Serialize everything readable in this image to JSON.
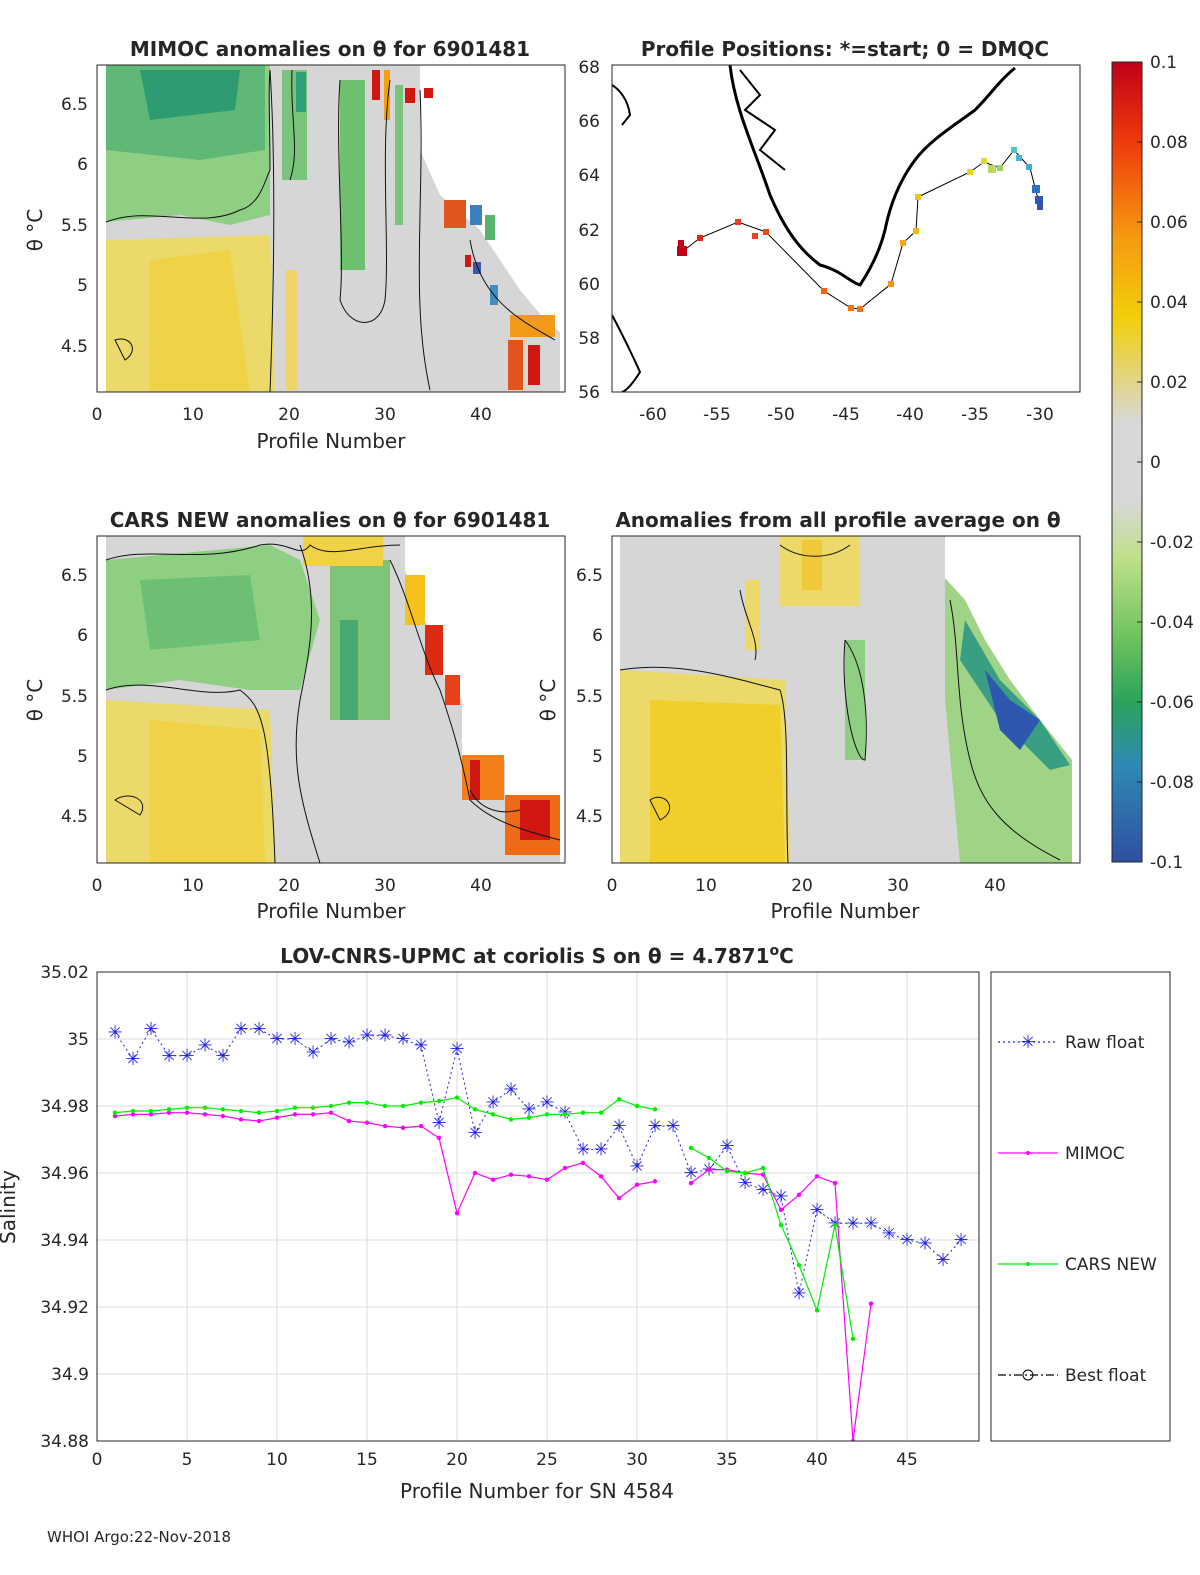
{
  "panels": {
    "mimoc": {
      "title": "MIMOC anomalies on θ  for 6901481",
      "xlabel": "Profile Number",
      "ylabel": "θ °C",
      "xticks": [
        "0",
        "10",
        "20",
        "30",
        "40"
      ],
      "yticks": [
        "6.5",
        "6",
        "5.5",
        "5",
        "4.5"
      ]
    },
    "map": {
      "title": "Profile Positions: *=start; 0 = DMQC",
      "xticks": [
        "-60",
        "-55",
        "-50",
        "-45",
        "-40",
        "-35",
        "-30"
      ],
      "yticks": [
        "68",
        "66",
        "64",
        "62",
        "60",
        "58",
        "56"
      ]
    },
    "cars": {
      "title": "CARS NEW anomalies on θ for 6901481",
      "xlabel": "Profile Number",
      "ylabel": "θ °C",
      "xticks": [
        "0",
        "10",
        "20",
        "30",
        "40"
      ],
      "yticks": [
        "6.5",
        "6",
        "5.5",
        "5",
        "4.5"
      ]
    },
    "avg": {
      "title": "Anomalies from all profile average on θ",
      "xlabel": "Profile Number",
      "ylabel": "θ °C",
      "xticks": [
        "0",
        "10",
        "20",
        "30",
        "40"
      ],
      "yticks": [
        "6.5",
        "6",
        "5.5",
        "5",
        "4.5"
      ]
    }
  },
  "colorbar": {
    "ticks": [
      "0.1",
      "0.08",
      "0.06",
      "0.04",
      "0.02",
      "0",
      "-0.02",
      "-0.04",
      "-0.06",
      "-0.08",
      "-0.1"
    ],
    "tick_values": [
      0.1,
      0.08,
      0.06,
      0.04,
      0.02,
      0,
      -0.02,
      -0.04,
      -0.06,
      -0.08,
      -0.1
    ]
  },
  "footer": "WHOI Argo:22-Nov-2018",
  "colors": {
    "raw": "#1f1fe6",
    "mimoc": "#ff00ff",
    "cars": "#00ee00",
    "best": "#000000",
    "grid": "#dcdcdc"
  },
  "chart_data": {
    "type": "line",
    "title": "LOV-CNRS-UPMC at coriolis S on θ = 4.7871°C",
    "title_prefix": "LOV-CNRS-UPMC at coriolis S on θ = 4.7871",
    "title_suffix": "C",
    "title_sup": "o",
    "xlabel": "Profile Number for SN 4584",
    "ylabel": "Salinity",
    "xlim": [
      0,
      49
    ],
    "ylim": [
      34.88,
      35.02
    ],
    "xticks": [
      0,
      5,
      10,
      15,
      20,
      25,
      30,
      35,
      40,
      45
    ],
    "yticks": [
      34.88,
      34.9,
      34.92,
      34.94,
      34.96,
      34.98,
      35
    ],
    "ytick_labels": [
      "34.88",
      "34.9",
      "34.92",
      "34.94",
      "34.96",
      "34.98",
      "35",
      "35.02"
    ],
    "ytick_label_values": [
      34.88,
      34.9,
      34.92,
      34.94,
      34.96,
      34.98,
      35,
      35.02
    ],
    "legend": [
      "Raw float",
      "MIMOC",
      "CARS NEW",
      "Best float"
    ],
    "series": [
      {
        "name": "Raw float",
        "style": "dotted-star",
        "x": [
          1,
          2,
          3,
          4,
          5,
          6,
          7,
          8,
          9,
          10,
          11,
          12,
          13,
          14,
          15,
          16,
          17,
          18,
          19,
          20,
          21,
          22,
          23,
          24,
          25,
          26,
          27,
          28,
          29,
          30,
          31,
          32,
          33,
          34,
          35,
          36,
          37,
          38,
          39,
          40,
          41,
          42,
          43,
          44,
          45,
          46,
          47,
          48
        ],
        "y": [
          35.002,
          34.994,
          35.003,
          34.995,
          34.995,
          34.998,
          34.995,
          35.003,
          35.003,
          35.0,
          35.0,
          34.996,
          35.0,
          34.999,
          35.001,
          35.001,
          35.0,
          34.998,
          34.975,
          34.997,
          34.972,
          34.981,
          34.985,
          34.979,
          34.981,
          34.978,
          34.967,
          34.967,
          34.974,
          34.962,
          34.974,
          34.974,
          34.96,
          34.961,
          34.968,
          34.957,
          34.955,
          34.953,
          34.924,
          34.949,
          34.945,
          34.945,
          34.945,
          34.942,
          34.94,
          34.939,
          34.934,
          34.94
        ]
      },
      {
        "name": "MIMOC",
        "style": "solid-dot",
        "segments": [
          {
            "x": [
              1,
              2,
              3,
              4,
              5,
              6,
              7,
              8,
              9,
              10,
              11,
              12,
              13,
              14,
              15,
              16,
              17,
              18,
              19,
              20,
              21,
              22,
              23,
              24,
              25,
              26,
              27,
              28,
              29,
              30,
              31
            ],
            "y": [
              34.977,
              34.9775,
              34.9775,
              34.978,
              34.978,
              34.9775,
              34.977,
              34.976,
              34.9755,
              34.9765,
              34.9775,
              34.9775,
              34.978,
              34.9755,
              34.975,
              34.974,
              34.9735,
              34.974,
              34.9705,
              34.948,
              34.96,
              34.958,
              34.9595,
              34.959,
              34.958,
              34.9615,
              34.963,
              34.959,
              34.9525,
              34.9565,
              34.9575
            ]
          },
          {
            "x": [
              33,
              34,
              35,
              36,
              37,
              38,
              39,
              40,
              41,
              42,
              43
            ],
            "y": [
              34.957,
              34.961,
              34.961,
              34.96,
              34.9595,
              34.949,
              34.9535,
              34.959,
              34.957,
              34.88,
              34.921
            ]
          }
        ]
      },
      {
        "name": "CARS NEW",
        "style": "solid-dot",
        "segments": [
          {
            "x": [
              1,
              2,
              3,
              4,
              5,
              6,
              7,
              8,
              9,
              10,
              11,
              12,
              13,
              14,
              15,
              16,
              17,
              18,
              19,
              20,
              21,
              22,
              23,
              24,
              25,
              26,
              27,
              28,
              29,
              30,
              31
            ],
            "y": [
              34.978,
              34.9785,
              34.9785,
              34.979,
              34.9795,
              34.9795,
              34.979,
              34.9785,
              34.978,
              34.9785,
              34.9795,
              34.9795,
              34.98,
              34.981,
              34.981,
              34.98,
              34.98,
              34.981,
              34.9815,
              34.9825,
              34.979,
              34.9775,
              34.976,
              34.9765,
              34.9775,
              34.9775,
              34.978,
              34.978,
              34.982,
              34.98,
              34.979
            ]
          },
          {
            "x": [
              33,
              34,
              35,
              36,
              37,
              38,
              39,
              40,
              41,
              42
            ],
            "y": [
              34.9675,
              34.9645,
              34.9605,
              34.96,
              34.9615,
              34.9445,
              34.9325,
              34.919,
              34.9445,
              34.9105
            ]
          }
        ]
      }
    ]
  }
}
